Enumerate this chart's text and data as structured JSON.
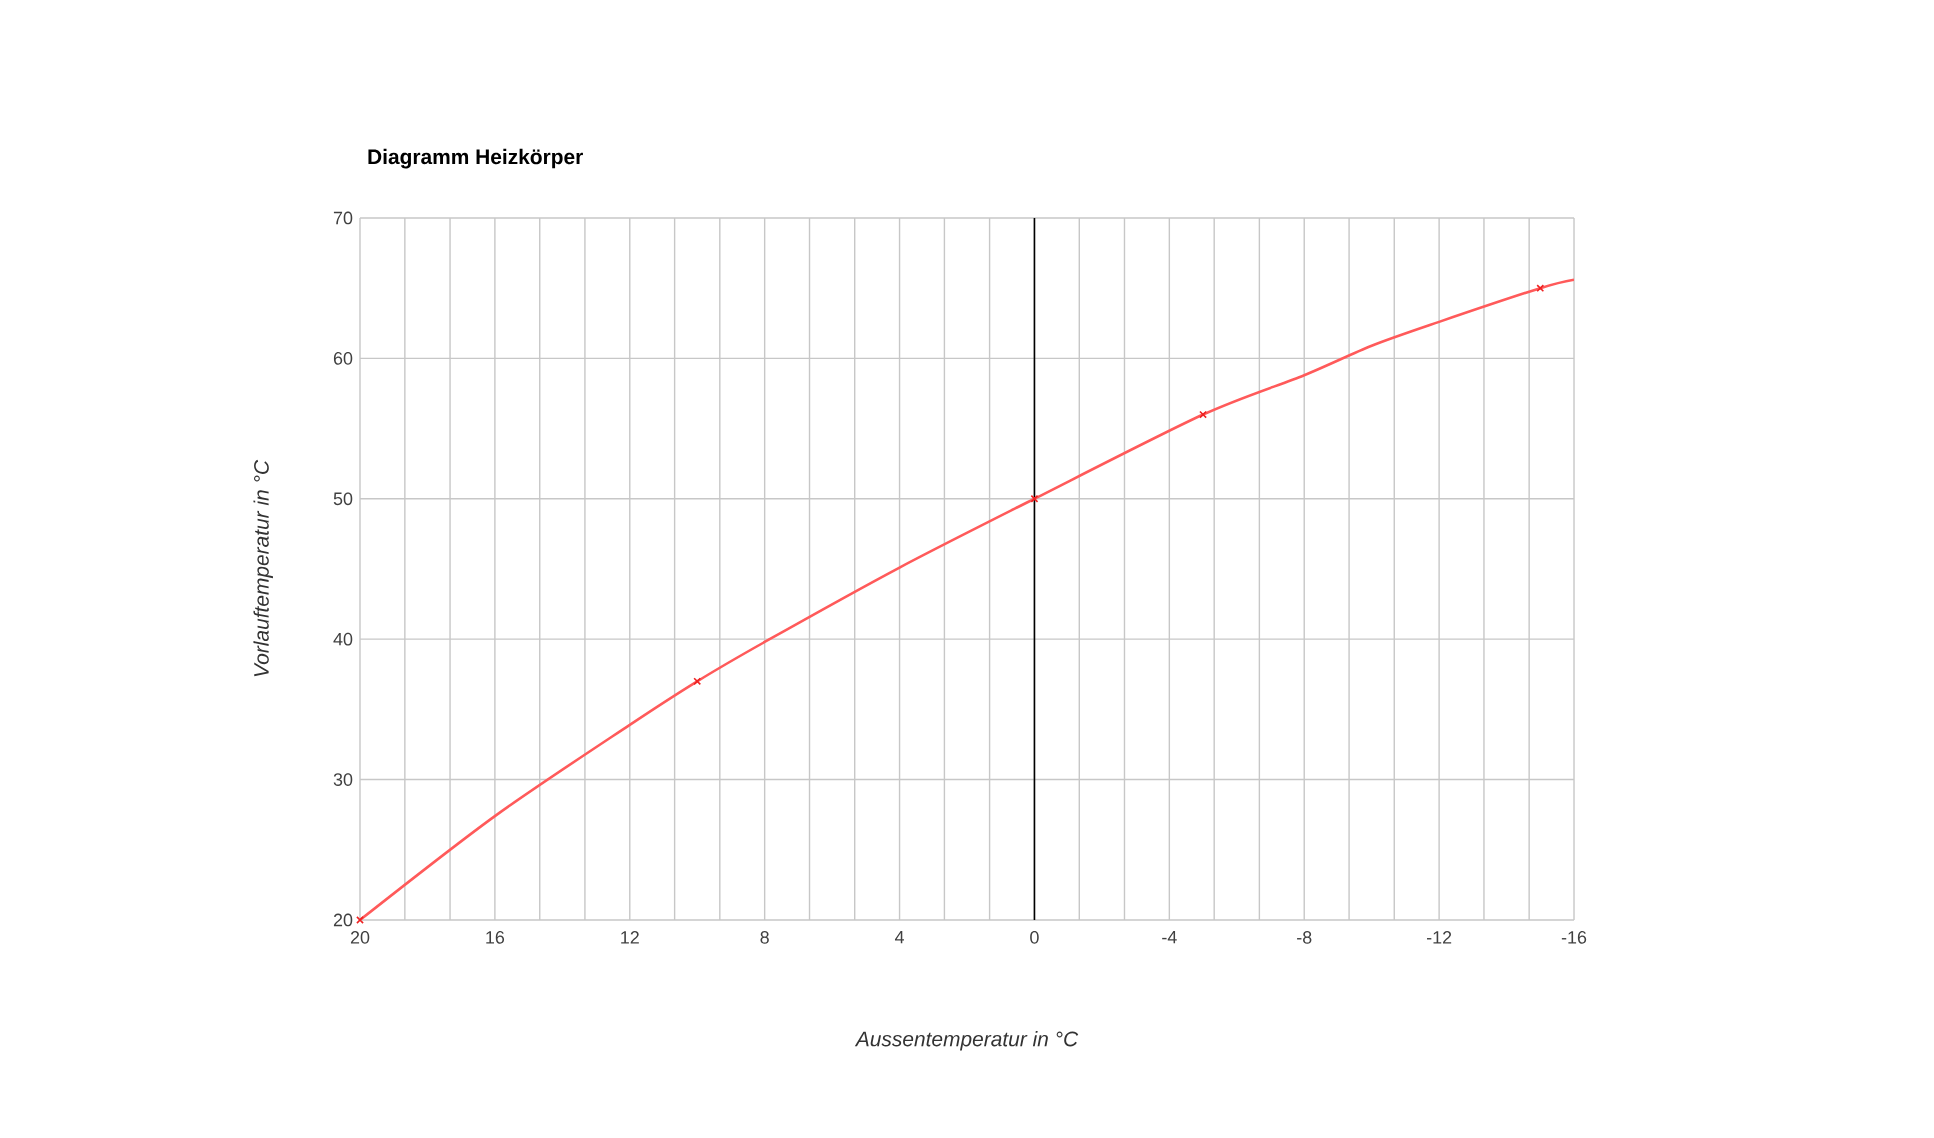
{
  "chart_data": {
    "type": "line",
    "title": "Diagramm Heizkörper",
    "xlabel": "Aussentemperatur in °C",
    "ylabel": "Vorlauftemperatur in °C",
    "xlim": [
      20,
      -16
    ],
    "ylim": [
      20,
      70
    ],
    "xticks": [
      20,
      {
        "value": 18.67,
        "label": null
      },
      {
        "value": 17.33,
        "label": null
      },
      16,
      {
        "value": 14.67,
        "label": null
      },
      {
        "value": 13.33,
        "label": null
      },
      12,
      {
        "value": 10.67,
        "label": null
      },
      {
        "value": 9.33,
        "label": null
      },
      8,
      {
        "value": 6.67,
        "label": null
      },
      {
        "value": 5.33,
        "label": null
      },
      4,
      {
        "value": 2.67,
        "label": null
      },
      {
        "value": 1.33,
        "label": null
      },
      0,
      {
        "value": -1.33,
        "label": null
      },
      {
        "value": -2.67,
        "label": null
      },
      -4,
      {
        "value": -5.33,
        "label": null
      },
      {
        "value": -6.67,
        "label": null
      },
      -8,
      {
        "value": -9.33,
        "label": null
      },
      {
        "value": -10.67,
        "label": null
      },
      -12,
      {
        "value": -13.33,
        "label": null
      },
      {
        "value": -14.67,
        "label": null
      },
      -16
    ],
    "yticks": [
      20,
      30,
      40,
      50,
      60,
      70
    ],
    "grid": true,
    "ref_lines": [
      {
        "axis": "x",
        "value": 0,
        "color": "#000000"
      }
    ],
    "series": [
      {
        "color": "#ff5a5a",
        "marker": "none",
        "x": [
          20,
          16,
          12,
          10,
          8,
          4,
          0,
          -5,
          -8,
          -10,
          -12,
          -15,
          -16
        ],
        "values": [
          20,
          27.4,
          33.9,
          37,
          39.8,
          45.1,
          50,
          56,
          58.8,
          60.9,
          62.6,
          65,
          65.6
        ]
      },
      {
        "type": "scatter",
        "color": "#ee2222",
        "marker": "cross",
        "x": [
          20,
          10,
          0,
          -5,
          -15
        ],
        "values": [
          20,
          37,
          50,
          56,
          65
        ]
      }
    ]
  }
}
